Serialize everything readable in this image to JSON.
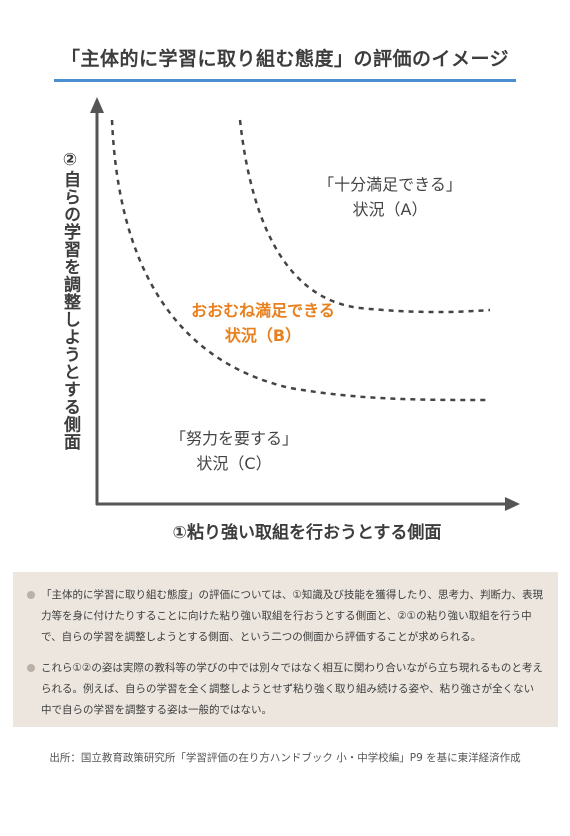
{
  "title": "「主体的に学習に取り組む態度」の評価のイメージ",
  "diagram": {
    "y_axis_label": "②自らの学習を調整しようとする側面",
    "x_axis_label": "①粘り強い取組を行おうとする側面",
    "regions": [
      {
        "line1": "「十分満足できる」",
        "line2": "状況（A）"
      },
      {
        "line1": "おおむね満足できる",
        "line2": "状況（B）"
      },
      {
        "line1": "「努力を要する」",
        "line2": "状況（C）"
      }
    ],
    "colors": {
      "accent": "#e8801f",
      "rule": "#4a8ed0",
      "axis": "#555555",
      "note_background": "#ece6df"
    }
  },
  "notes": [
    "「主体的に学習に取り組む態度」の評価については、①知識及び技能を獲得したり、思考力、判断力、表現力等を身に付けたりすることに向けた粘り強い取組を行おうとする側面と、②①の粘り強い取組を行う中で、自らの学習を調整しようとする側面、という二つの側面から評価することが求められる。",
    "これら①②の姿は実際の教科等の学びの中では別々ではなく相互に関わり合いながら立ち現れるものと考えられる。例えば、自らの学習を全く調整しようとせず粘り強く取り組み続ける姿や、粘り強さが全くない中で自らの学習を調整する姿は一般的ではない。"
  ],
  "source": "出所：国立教育政策研究所「学習評価の在り方ハンドブック 小・中学校編」P9 を基に東洋経済作成"
}
